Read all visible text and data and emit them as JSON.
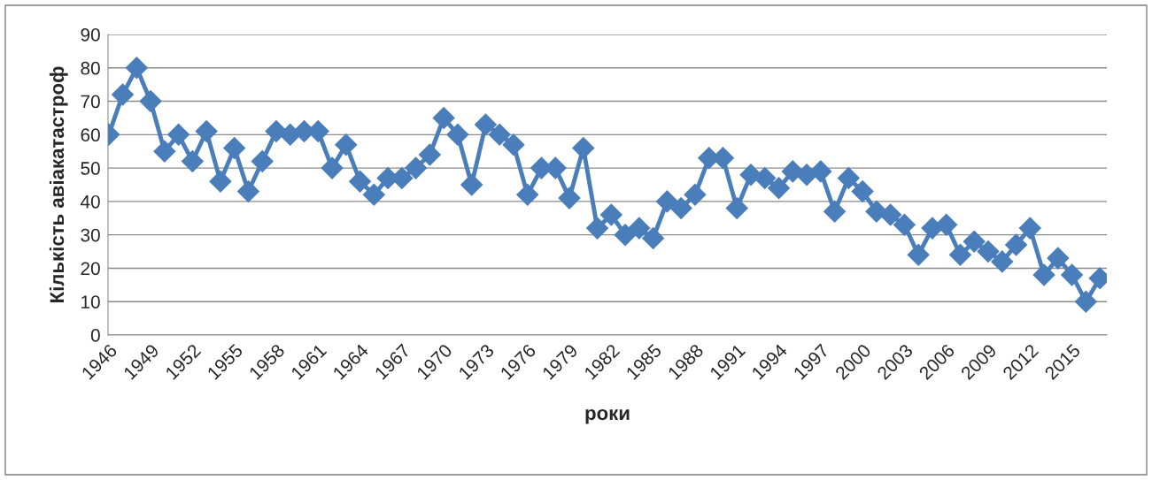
{
  "chart_data": {
    "type": "line",
    "xlabel": "роки",
    "ylabel": "Кількість авіакатастроф",
    "categories": [
      "1946",
      null,
      null,
      "1949",
      null,
      null,
      "1952",
      null,
      null,
      "1955",
      null,
      null,
      "1958",
      null,
      null,
      "1961",
      null,
      null,
      "1964",
      null,
      null,
      "1967",
      null,
      null,
      "1970",
      null,
      null,
      "1973",
      null,
      null,
      "1976",
      null,
      null,
      "1979",
      null,
      null,
      "1982",
      null,
      null,
      "1985",
      null,
      null,
      "1988",
      null,
      null,
      "1991",
      null,
      null,
      "1994",
      null,
      null,
      "1997",
      null,
      null,
      "2000",
      null,
      null,
      "2003",
      null,
      null,
      "2006",
      null,
      null,
      "2009",
      null,
      null,
      "2012",
      null,
      null,
      "2015",
      null,
      null
    ],
    "series": [
      {
        "color": "#4a7ebb",
        "values": [
          60,
          72,
          80,
          70,
          55,
          60,
          52,
          61,
          46,
          56,
          43,
          52,
          61,
          60,
          61,
          61,
          50,
          57,
          46,
          42,
          47,
          47,
          50,
          54,
          65,
          60,
          45,
          63,
          60,
          57,
          42,
          50,
          50,
          41,
          56,
          32,
          36,
          30,
          32,
          29,
          40,
          38,
          42,
          53,
          53,
          38,
          48,
          47,
          44,
          49,
          48,
          49,
          37,
          47,
          43,
          37,
          36,
          33,
          24,
          32,
          33,
          24,
          28,
          25,
          22,
          27,
          32,
          18,
          23,
          18,
          10,
          17
        ]
      }
    ],
    "ylim": [
      0,
      90
    ],
    "yticks": [
      0,
      10,
      20,
      30,
      40,
      50,
      60,
      70,
      80,
      90
    ],
    "grid": "y",
    "marker": "diamond",
    "line_style": "solid",
    "legend": false
  }
}
